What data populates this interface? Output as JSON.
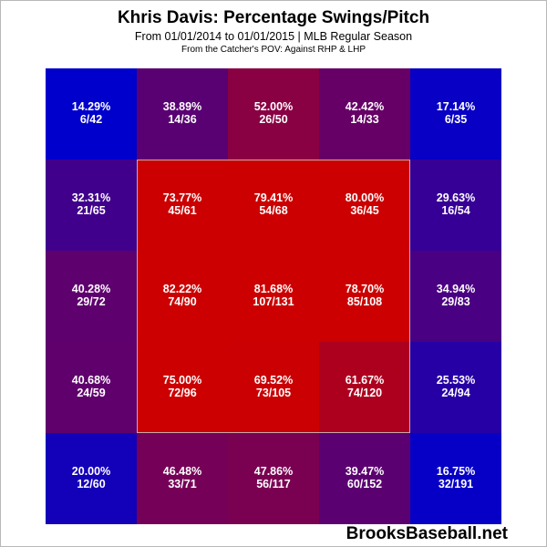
{
  "title": "Khris Davis: Percentage Swings/Pitch",
  "subtitle": "From 01/01/2014 to 01/01/2015 | MLB Regular Season",
  "subsubtitle": "From the Catcher's POV:  Against RHP & LHP",
  "watermark": "BrooksBaseball.net",
  "chart_data": {
    "type": "heatmap",
    "title": "Khris Davis: Percentage Swings/Pitch",
    "rows": 5,
    "cols": 5,
    "strike_zone": "center 3x3",
    "color_scale": {
      "low": "#0000cc",
      "high": "#cc0000"
    },
    "cells": [
      [
        {
          "pct": "14.29%",
          "count": "6/42",
          "value": 14.29
        },
        {
          "pct": "38.89%",
          "count": "14/36",
          "value": 38.89
        },
        {
          "pct": "52.00%",
          "count": "26/50",
          "value": 52.0
        },
        {
          "pct": "42.42%",
          "count": "14/33",
          "value": 42.42
        },
        {
          "pct": "17.14%",
          "count": "6/35",
          "value": 17.14
        }
      ],
      [
        {
          "pct": "32.31%",
          "count": "21/65",
          "value": 32.31
        },
        {
          "pct": "73.77%",
          "count": "45/61",
          "value": 73.77
        },
        {
          "pct": "79.41%",
          "count": "54/68",
          "value": 79.41
        },
        {
          "pct": "80.00%",
          "count": "36/45",
          "value": 80.0
        },
        {
          "pct": "29.63%",
          "count": "16/54",
          "value": 29.63
        }
      ],
      [
        {
          "pct": "40.28%",
          "count": "29/72",
          "value": 40.28
        },
        {
          "pct": "82.22%",
          "count": "74/90",
          "value": 82.22
        },
        {
          "pct": "81.68%",
          "count": "107/131",
          "value": 81.68
        },
        {
          "pct": "78.70%",
          "count": "85/108",
          "value": 78.7
        },
        {
          "pct": "34.94%",
          "count": "29/83",
          "value": 34.94
        }
      ],
      [
        {
          "pct": "40.68%",
          "count": "24/59",
          "value": 40.68
        },
        {
          "pct": "75.00%",
          "count": "72/96",
          "value": 75.0
        },
        {
          "pct": "69.52%",
          "count": "73/105",
          "value": 69.52
        },
        {
          "pct": "61.67%",
          "count": "74/120",
          "value": 61.67
        },
        {
          "pct": "25.53%",
          "count": "24/94",
          "value": 25.53
        }
      ],
      [
        {
          "pct": "20.00%",
          "count": "12/60",
          "value": 20.0
        },
        {
          "pct": "46.48%",
          "count": "33/71",
          "value": 46.48
        },
        {
          "pct": "47.86%",
          "count": "56/117",
          "value": 47.86
        },
        {
          "pct": "39.47%",
          "count": "60/152",
          "value": 39.47
        },
        {
          "pct": "16.75%",
          "count": "32/191",
          "value": 16.75
        }
      ]
    ]
  }
}
